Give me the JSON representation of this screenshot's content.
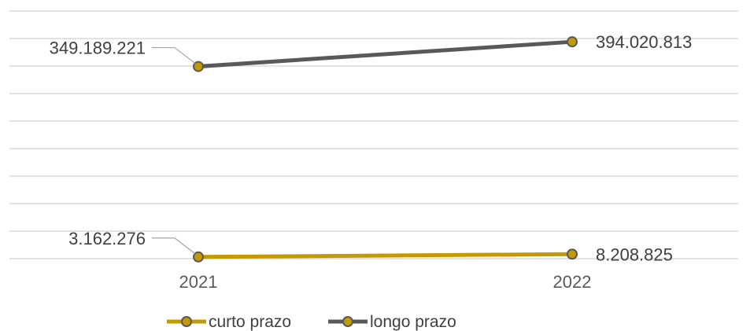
{
  "chart_data": {
    "type": "line",
    "categories": [
      "2021",
      "2022"
    ],
    "series": [
      {
        "name": "curto prazo",
        "values": [
          3162276,
          8208825
        ],
        "labels": [
          "3.162.276",
          "8.208.825"
        ],
        "color": "#c49a00"
      },
      {
        "name": "longo prazo",
        "values": [
          349189221,
          394020813
        ],
        "labels": [
          "349.189.221",
          "394.020.813"
        ],
        "color": "#595959"
      }
    ],
    "ylim": [
      0,
      450000000
    ],
    "grid": true,
    "legend": "bottom",
    "marker_fill": "#c49a00",
    "marker_stroke": "#595959",
    "title": "",
    "xlabel": "",
    "ylabel": ""
  }
}
